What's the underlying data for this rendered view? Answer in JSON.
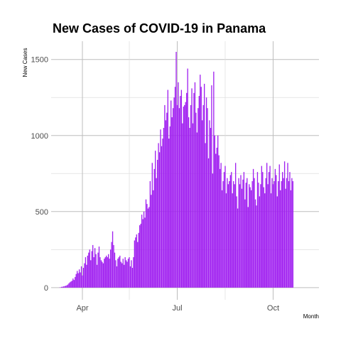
{
  "chart_data": {
    "type": "bar",
    "title": "New Cases of COVID-19 in Panama",
    "xlabel": "Month",
    "ylabel": "New Cases",
    "x_start": "2020-03-10",
    "ylim": [
      -80,
      1620
    ],
    "y_ticks": [
      0,
      500,
      1000,
      1500
    ],
    "x_ticks": [
      {
        "label": "Apr",
        "date": "2020-04-01"
      },
      {
        "label": "Jul",
        "date": "2020-07-01"
      },
      {
        "label": "Oct",
        "date": "2020-10-01"
      }
    ],
    "grid": true,
    "bar_color": "#a020f0",
    "values": [
      1,
      2,
      5,
      6,
      8,
      10,
      12,
      15,
      20,
      28,
      35,
      40,
      45,
      60,
      50,
      70,
      90,
      110,
      95,
      120,
      100,
      140,
      80,
      130,
      160,
      200,
      150,
      210,
      230,
      250,
      180,
      240,
      280,
      200,
      260,
      220,
      150,
      230,
      270,
      200,
      180,
      170,
      160,
      190,
      200,
      210,
      200,
      220,
      190,
      250,
      300,
      370,
      280,
      230,
      180,
      140,
      190,
      200,
      210,
      170,
      160,
      190,
      150,
      200,
      180,
      170,
      190,
      200,
      140,
      180,
      130,
      200,
      310,
      330,
      350,
      300,
      360,
      410,
      420,
      480,
      450,
      500,
      460,
      580,
      550,
      520,
      530,
      700,
      610,
      820,
      640,
      780,
      900,
      720,
      840,
      950,
      890,
      1040,
      930,
      980,
      1050,
      1200,
      1100,
      1150,
      1300,
      980,
      1060,
      1230,
      1120,
      1180,
      1250,
      1320,
      1550,
      1200,
      1350,
      1180,
      1260,
      1300,
      1080,
      1190,
      1200,
      1220,
      1280,
      1440,
      1120,
      1050,
      1200,
      1310,
      1080,
      1280,
      1350,
      1150,
      1020,
      1180,
      1260,
      1400,
      1320,
      1100,
      1200,
      1340,
      950,
      1250,
      1180,
      850,
      1100,
      1050,
      1330,
      750,
      1420,
      1000,
      880,
      920,
      1000,
      870,
      780,
      820,
      640,
      700,
      760,
      800,
      620,
      720,
      680,
      700,
      740,
      760,
      620,
      700,
      680,
      820,
      600,
      520,
      720,
      680,
      740,
      650,
      710,
      760,
      580,
      690,
      720,
      530,
      680,
      660,
      640,
      700,
      780,
      720,
      580,
      540,
      760,
      690,
      600,
      680,
      800,
      760,
      660,
      620,
      720,
      820,
      680,
      760,
      800,
      620,
      720,
      680,
      700,
      780,
      740,
      600,
      700,
      810,
      640,
      700,
      760,
      720,
      830,
      650,
      720,
      820,
      700,
      760,
      640,
      720,
      700
    ]
  }
}
